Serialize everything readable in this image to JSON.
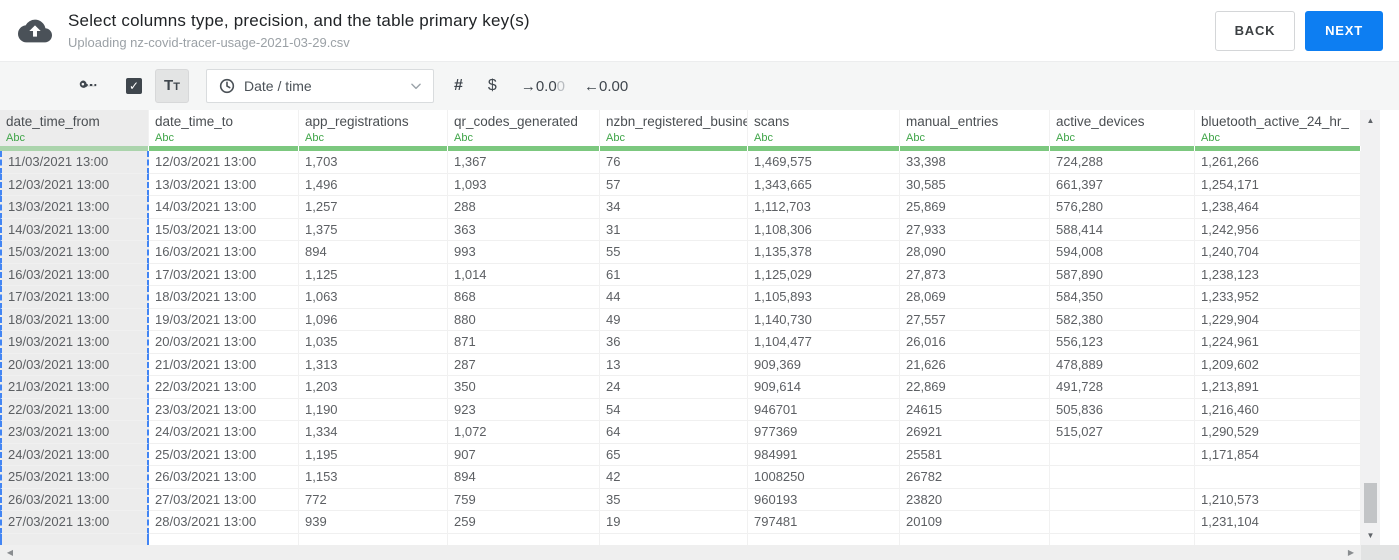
{
  "header": {
    "title": "Select columns type, precision, and the table primary key(s)",
    "subtitle": "Uploading nz-covid-tracer-usage-2021-03-29.csv",
    "back_label": "BACK",
    "next_label": "NEXT"
  },
  "toolbar": {
    "primary_key_checkbox": {
      "checked": true,
      "checkmark": "✓"
    },
    "text_type_label": {
      "first": "T",
      "second": "T"
    },
    "type_select": {
      "value": "Date / time",
      "icon": "clock"
    },
    "number_label": "#",
    "currency_label": "$",
    "increase_precision": {
      "dark_part": "→0.0",
      "faded_part": "0"
    },
    "decrease_precision_label": "←0.00"
  },
  "table": {
    "columns": [
      {
        "name": "date_time_from",
        "type": "Abc",
        "selected": true
      },
      {
        "name": "date_time_to",
        "type": "Abc",
        "selected": false
      },
      {
        "name": "app_registrations",
        "type": "Abc",
        "selected": false
      },
      {
        "name": "qr_codes_generated",
        "type": "Abc",
        "selected": false
      },
      {
        "name": "nzbn_registered_busine",
        "type": "Abc",
        "selected": false
      },
      {
        "name": "scans",
        "type": "Abc",
        "selected": false
      },
      {
        "name": "manual_entries",
        "type": "Abc",
        "selected": false
      },
      {
        "name": "active_devices",
        "type": "Abc",
        "selected": false
      },
      {
        "name": "bluetooth_active_24_hr_",
        "type": "Abc",
        "selected": false
      }
    ],
    "rows": [
      [
        "11/03/2021 13:00",
        "12/03/2021 13:00",
        "1,703",
        "1,367",
        "76",
        "1,469,575",
        "33,398",
        "724,288",
        "1,261,266"
      ],
      [
        "12/03/2021 13:00",
        "13/03/2021 13:00",
        "1,496",
        "1,093",
        "57",
        "1,343,665",
        "30,585",
        "661,397",
        "1,254,171"
      ],
      [
        "13/03/2021 13:00",
        "14/03/2021 13:00",
        "1,257",
        "288",
        "34",
        "1,112,703",
        "25,869",
        "576,280",
        "1,238,464"
      ],
      [
        "14/03/2021 13:00",
        "15/03/2021 13:00",
        "1,375",
        "363",
        "31",
        "1,108,306",
        "27,933",
        "588,414",
        "1,242,956"
      ],
      [
        "15/03/2021 13:00",
        "16/03/2021 13:00",
        "894",
        "993",
        "55",
        "1,135,378",
        "28,090",
        "594,008",
        "1,240,704"
      ],
      [
        "16/03/2021 13:00",
        "17/03/2021 13:00",
        "1,125",
        "1,014",
        "61",
        "1,125,029",
        "27,873",
        "587,890",
        "1,238,123"
      ],
      [
        "17/03/2021 13:00",
        "18/03/2021 13:00",
        "1,063",
        "868",
        "44",
        "1,105,893",
        "28,069",
        "584,350",
        "1,233,952"
      ],
      [
        "18/03/2021 13:00",
        "19/03/2021 13:00",
        "1,096",
        "880",
        "49",
        "1,140,730",
        "27,557",
        "582,380",
        "1,229,904"
      ],
      [
        "19/03/2021 13:00",
        "20/03/2021 13:00",
        "1,035",
        "871",
        "36",
        "1,104,477",
        "26,016",
        "556,123",
        "1,224,961"
      ],
      [
        "20/03/2021 13:00",
        "21/03/2021 13:00",
        "1,313",
        "287",
        "13",
        "909,369",
        "21,626",
        "478,889",
        "1,209,602"
      ],
      [
        "21/03/2021 13:00",
        "22/03/2021 13:00",
        "1,203",
        "350",
        "24",
        "909,614",
        "22,869",
        "491,728",
        "1,213,891"
      ],
      [
        "22/03/2021 13:00",
        "23/03/2021 13:00",
        "1,190",
        "923",
        "54",
        "946701",
        "24615",
        "505,836",
        "1,216,460"
      ],
      [
        "23/03/2021 13:00",
        "24/03/2021 13:00",
        "1,334",
        "1,072",
        "64",
        "977369",
        "26921",
        "515,027",
        "1,290,529"
      ],
      [
        "24/03/2021 13:00",
        "25/03/2021 13:00",
        "1,195",
        "907",
        "65",
        "984991",
        "25581",
        "",
        "1,171,854"
      ],
      [
        "25/03/2021 13:00",
        "26/03/2021 13:00",
        "1,153",
        "894",
        "42",
        "1008250",
        "26782",
        "",
        ""
      ],
      [
        "26/03/2021 13:00",
        "27/03/2021 13:00",
        "772",
        "759",
        "35",
        "960193",
        "23820",
        "",
        "1,210,573"
      ],
      [
        "27/03/2021 13:00",
        "28/03/2021 13:00",
        "939",
        "259",
        "19",
        "797481",
        "20109",
        "",
        "1,231,104"
      ]
    ]
  },
  "scrollbars": {
    "up_arrow": "▲",
    "down_arrow": "▼",
    "left_arrow": "◀",
    "right_arrow": "▶"
  },
  "colors": {
    "accent_blue": "#0d7ef2",
    "selection_dashed_blue": "#4285f4",
    "type_green": "#3fa548",
    "column_bar_green": "#7cc87f",
    "selected_column_gray": "#ececec"
  }
}
